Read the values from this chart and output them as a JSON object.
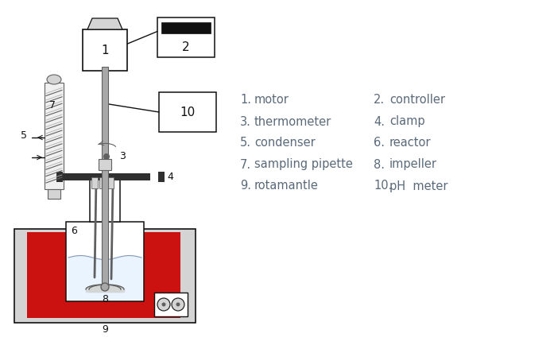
{
  "bg_color": "#ffffff",
  "text_color": "#5a6a7a",
  "legend": [
    [
      "1.",
      "motor",
      "2.",
      "controller"
    ],
    [
      "3.",
      "thermometer",
      "4.",
      "clamp"
    ],
    [
      "5.",
      "condenser",
      "6.",
      "reactor"
    ],
    [
      "7.",
      "sampling pipette",
      "8.",
      "impeller"
    ],
    [
      "9.",
      "rotamantle",
      "10.",
      "pH  meter"
    ]
  ],
  "gray_light": "#d4d4d4",
  "gray_mid": "#a8a8a8",
  "gray_dark": "#606060",
  "gray_vdark": "#303030",
  "red": "#cc1111",
  "black": "#111111",
  "white": "#ffffff",
  "blue_tint": "#ddeeff"
}
